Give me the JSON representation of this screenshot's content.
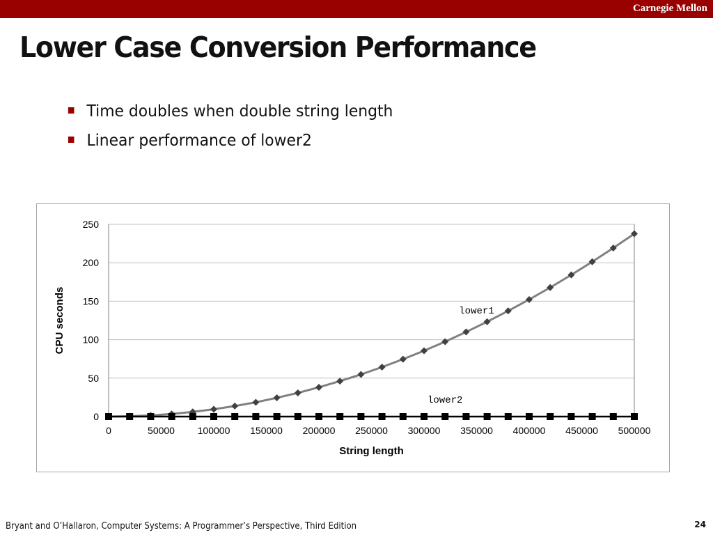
{
  "header": {
    "brand": "Carnegie Mellon"
  },
  "slide": {
    "title": "Lower Case Conversion Performance",
    "bullets": [
      "Time doubles when double string length",
      "Linear performance of lower2"
    ]
  },
  "footer": {
    "citation": "Bryant and O’Hallaron, Computer Systems: A Programmer’s Perspective, Third Edition",
    "page_number": "24"
  },
  "colors": {
    "brand_red": "#990000",
    "lower1_line": "#808080",
    "lower1_marker": "#404040",
    "lower2_line": "#000000",
    "grid": "#c0c0c0"
  },
  "chart_data": {
    "type": "line",
    "xlabel": "String length",
    "ylabel": "CPU seconds",
    "xlim": [
      0,
      500000
    ],
    "ylim": [
      0,
      250
    ],
    "xticks": [
      0,
      50000,
      100000,
      150000,
      200000,
      250000,
      300000,
      350000,
      400000,
      450000,
      500000
    ],
    "yticks": [
      0,
      50,
      100,
      150,
      200,
      250
    ],
    "grid": "horizontal",
    "x": [
      0,
      20000,
      40000,
      60000,
      80000,
      100000,
      120000,
      140000,
      160000,
      180000,
      200000,
      220000,
      240000,
      260000,
      280000,
      300000,
      320000,
      340000,
      360000,
      380000,
      400000,
      420000,
      440000,
      460000,
      480000,
      500000
    ],
    "series": [
      {
        "name": "lower1",
        "marker": "diamond",
        "values": [
          0,
          0.4,
          1.5,
          3.4,
          6.1,
          9.5,
          13.7,
          18.6,
          24.4,
          30.8,
          38.1,
          46.1,
          54.8,
          64.3,
          74.6,
          85.6,
          97.4,
          110.0,
          123.3,
          137.4,
          152.2,
          167.8,
          184.2,
          201.3,
          219.2,
          237.8
        ]
      },
      {
        "name": "lower2",
        "marker": "square",
        "values": [
          0,
          0,
          0,
          0,
          0,
          0,
          0,
          0,
          0,
          0,
          0,
          0,
          0,
          0,
          0,
          0,
          0,
          0,
          0,
          0,
          0,
          0,
          0,
          0,
          0,
          0
        ]
      }
    ],
    "annotations": [
      {
        "text": "lower1",
        "x": 350000,
        "y": 134
      },
      {
        "text": "lower2",
        "x": 320000,
        "y": 18
      }
    ]
  }
}
